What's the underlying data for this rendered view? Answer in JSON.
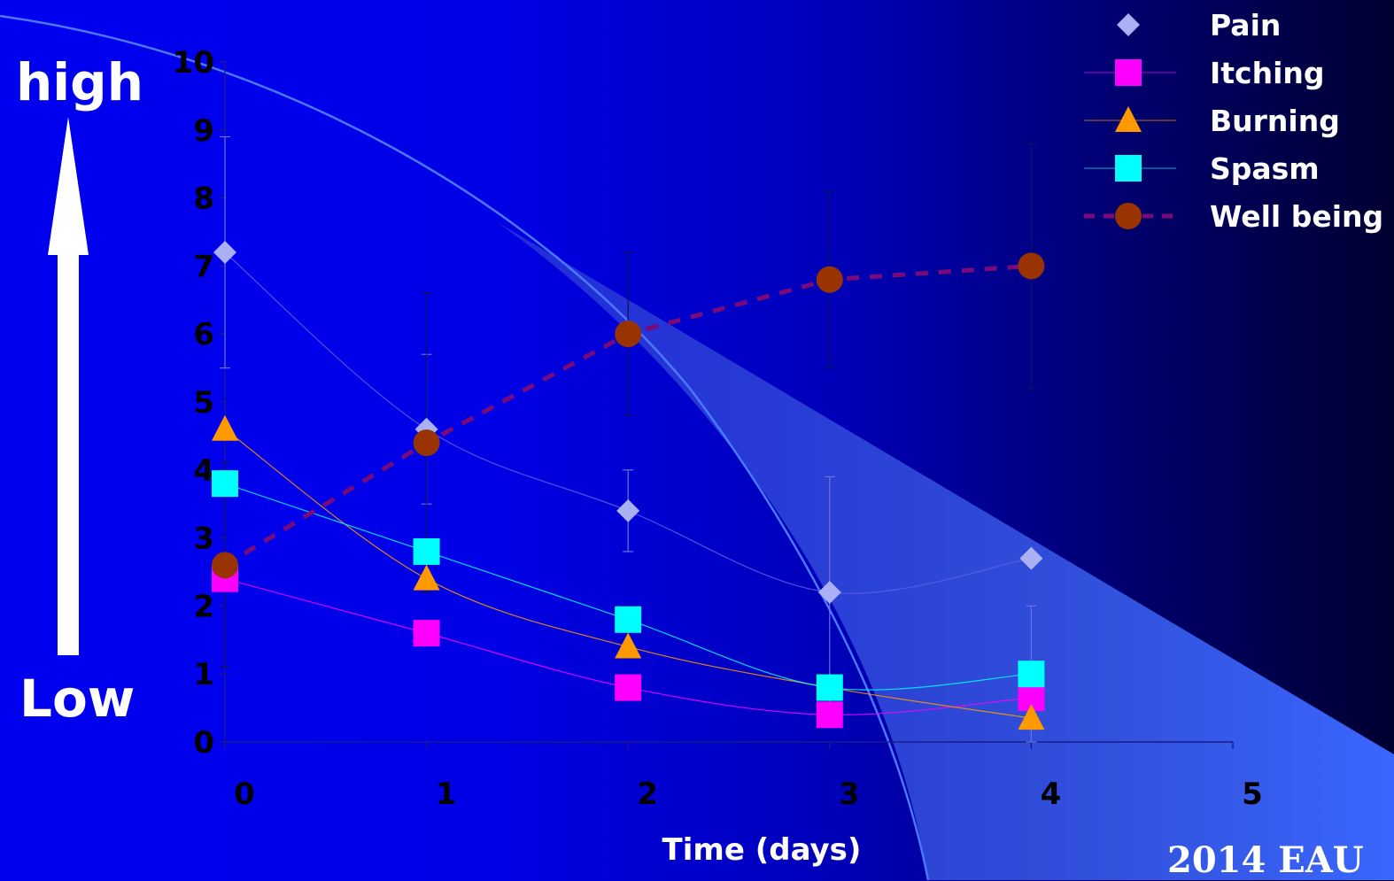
{
  "side_labels": {
    "top": "high",
    "bottom": "Low"
  },
  "source_text": "2014 EAU",
  "colors": {
    "Pain": "#aab0f4",
    "Itching": "#ff00ff",
    "Burning": "#ff9900",
    "Spasm": "#00ffff",
    "Well being": "#993300",
    "Well being line": "#7a0a7a",
    "arrow": "#ffffff"
  },
  "chart_data": {
    "type": "line",
    "title": "",
    "xlabel": "Time (days)",
    "ylabel": "",
    "xlim": [
      0,
      5
    ],
    "ylim": [
      0,
      10
    ],
    "x_ticks": [
      "0",
      "1",
      "2",
      "3",
      "4",
      "5"
    ],
    "y_ticks": [
      "0",
      "1",
      "2",
      "3",
      "4",
      "5",
      "6",
      "7",
      "8",
      "9",
      "10"
    ],
    "x": [
      0,
      1,
      2,
      3,
      4
    ],
    "legend_position": "top-right",
    "series": [
      {
        "name": "Pain",
        "marker": "diamond",
        "line": "solid",
        "values": [
          7.2,
          4.6,
          3.4,
          2.2,
          2.7
        ],
        "error_plus": [
          1.7,
          1.1,
          0.6,
          1.7,
          0
        ],
        "error_minus": [
          1.7,
          1.1,
          0.6,
          1.7,
          0
        ]
      },
      {
        "name": "Itching",
        "marker": "square",
        "line": "solid",
        "values": [
          2.4,
          1.6,
          0.8,
          0.4,
          0.65
        ],
        "error_plus": [
          0,
          0,
          0,
          0,
          0
        ],
        "error_minus": [
          0,
          0,
          0,
          0,
          0
        ]
      },
      {
        "name": "Burning",
        "marker": "triangle",
        "line": "solid",
        "values": [
          4.6,
          2.4,
          1.4,
          0.8,
          0.35
        ],
        "error_plus": [
          0,
          0,
          0,
          0,
          0
        ],
        "error_minus": [
          0,
          0,
          0,
          0,
          0
        ]
      },
      {
        "name": "Spasm",
        "marker": "square",
        "line": "solid",
        "values": [
          3.8,
          2.8,
          1.8,
          0.8,
          1.0
        ],
        "error_plus": [
          0,
          0,
          0,
          0,
          1.0
        ],
        "error_minus": [
          0,
          0,
          0,
          0,
          1.0
        ]
      },
      {
        "name": "Well being",
        "marker": "circle",
        "line": "dashed",
        "values": [
          2.6,
          4.4,
          6.0,
          6.8,
          7.0
        ],
        "error_plus": [
          1.5,
          2.2,
          1.2,
          1.3,
          1.8
        ],
        "error_minus": [
          1.5,
          2.2,
          1.2,
          1.3,
          1.8
        ]
      }
    ]
  }
}
